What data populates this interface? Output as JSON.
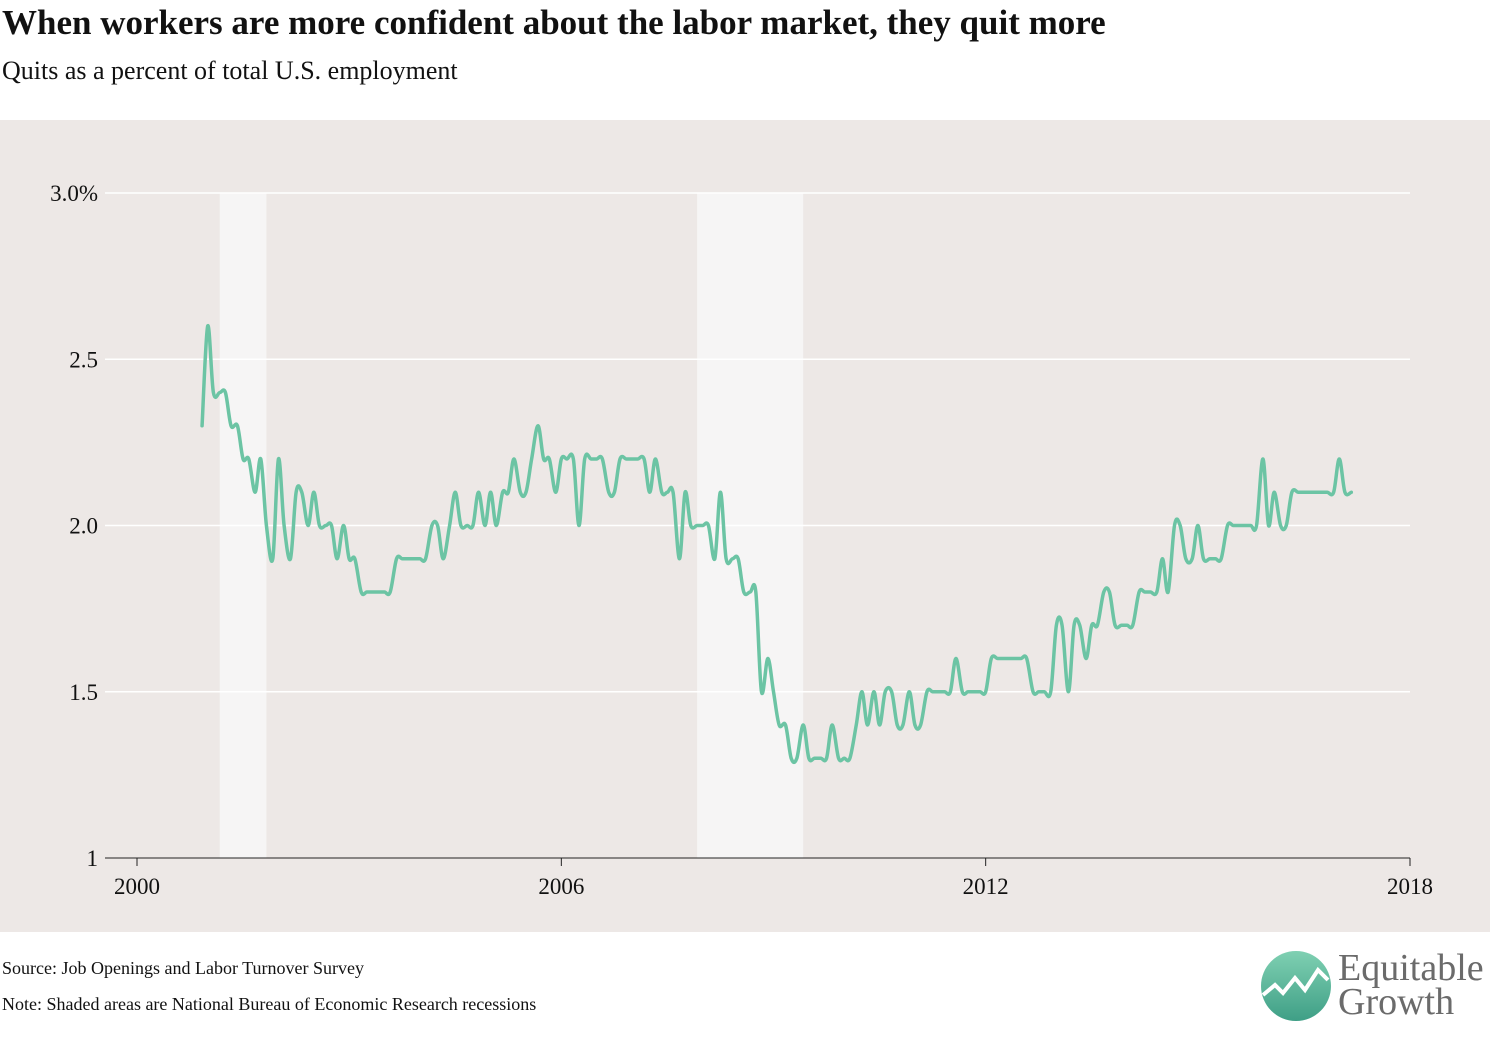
{
  "chart_data": {
    "type": "line",
    "title": "When workers are more confident about the labor market, they quit more",
    "subtitle": "Quits as a percent of total U.S. employment",
    "source": "Source: Job Openings and Labor Turnover Survey",
    "note": "Note: Shaded areas are National Bureau of Economic Research recessions",
    "logo": [
      "Equitable",
      "Growth"
    ],
    "xlim": [
      2000,
      2018
    ],
    "xticks": [
      2000,
      2006,
      2012,
      2018
    ],
    "ylim": [
      1,
      3
    ],
    "yticks": [
      1,
      1.5,
      {
        "value": 2,
        "label": "2.0"
      },
      {
        "value": 2.5,
        "label": "2.5"
      },
      {
        "value": 3,
        "label": "3.0%"
      }
    ],
    "grid": true,
    "recessions": [
      [
        2001.17,
        2001.83
      ],
      [
        2007.92,
        2009.42
      ]
    ],
    "recession_color": "#f6f5f5",
    "x": [
      2000.92,
      2001,
      2001.08,
      2001.17,
      2001.25,
      2001.33,
      2001.42,
      2001.5,
      2001.58,
      2001.67,
      2001.75,
      2001.83,
      2001.92,
      2002,
      2002.08,
      2002.17,
      2002.25,
      2002.33,
      2002.42,
      2002.5,
      2002.58,
      2002.67,
      2002.75,
      2002.83,
      2002.92,
      2003,
      2003.08,
      2003.17,
      2003.25,
      2003.33,
      2003.42,
      2003.5,
      2003.58,
      2003.67,
      2003.75,
      2003.83,
      2003.92,
      2004,
      2004.08,
      2004.17,
      2004.25,
      2004.33,
      2004.42,
      2004.5,
      2004.58,
      2004.67,
      2004.75,
      2004.83,
      2004.92,
      2005,
      2005.08,
      2005.17,
      2005.25,
      2005.33,
      2005.42,
      2005.5,
      2005.58,
      2005.67,
      2005.75,
      2005.83,
      2005.92,
      2006,
      2006.08,
      2006.17,
      2006.25,
      2006.33,
      2006.42,
      2006.5,
      2006.58,
      2006.67,
      2006.75,
      2006.83,
      2006.92,
      2007,
      2007.08,
      2007.17,
      2007.25,
      2007.33,
      2007.42,
      2007.5,
      2007.58,
      2007.67,
      2007.75,
      2007.83,
      2007.92,
      2008,
      2008.08,
      2008.17,
      2008.25,
      2008.33,
      2008.42,
      2008.5,
      2008.58,
      2008.67,
      2008.75,
      2008.83,
      2008.92,
      2009,
      2009.08,
      2009.17,
      2009.25,
      2009.33,
      2009.42,
      2009.5,
      2009.58,
      2009.67,
      2009.75,
      2009.83,
      2009.92,
      2010,
      2010.08,
      2010.17,
      2010.25,
      2010.33,
      2010.42,
      2010.5,
      2010.58,
      2010.67,
      2010.75,
      2010.83,
      2010.92,
      2011,
      2011.08,
      2011.17,
      2011.25,
      2011.33,
      2011.42,
      2011.5,
      2011.58,
      2011.67,
      2011.75,
      2011.83,
      2011.92,
      2012,
      2012.08,
      2012.17,
      2012.25,
      2012.33,
      2012.42,
      2012.5,
      2012.58,
      2012.67,
      2012.75,
      2012.83,
      2012.92,
      2013,
      2013.08,
      2013.17,
      2013.25,
      2013.33,
      2013.42,
      2013.5,
      2013.58,
      2013.67,
      2013.75,
      2013.83,
      2013.92,
      2014,
      2014.08,
      2014.17,
      2014.25,
      2014.33,
      2014.42,
      2014.5,
      2014.58,
      2014.67,
      2014.75,
      2014.83,
      2014.92,
      2015,
      2015.08,
      2015.17,
      2015.25,
      2015.33,
      2015.42,
      2015.5,
      2015.58,
      2015.67,
      2015.75,
      2015.83,
      2015.92,
      2016,
      2016.08,
      2016.17,
      2016.25,
      2016.33,
      2016.42,
      2016.5,
      2016.58,
      2016.67,
      2016.75,
      2016.83,
      2016.92,
      2017,
      2017.08,
      2017.17
    ],
    "series": [
      {
        "name": "Quits",
        "color": "#6cc4a4",
        "values": [
          2.3,
          2.6,
          2.4,
          2.4,
          2.4,
          2.3,
          2.3,
          2.2,
          2.2,
          2.1,
          2.2,
          2.0,
          1.9,
          2.2,
          2.0,
          1.9,
          2.1,
          2.1,
          2.0,
          2.1,
          2.0,
          2.0,
          2.0,
          1.9,
          2.0,
          1.9,
          1.9,
          1.8,
          1.8,
          1.8,
          1.8,
          1.8,
          1.8,
          1.9,
          1.9,
          1.9,
          1.9,
          1.9,
          1.9,
          2.0,
          2.0,
          1.9,
          2.0,
          2.1,
          2.0,
          2.0,
          2.0,
          2.1,
          2.0,
          2.1,
          2.0,
          2.1,
          2.1,
          2.2,
          2.1,
          2.1,
          2.2,
          2.3,
          2.2,
          2.2,
          2.1,
          2.2,
          2.2,
          2.2,
          2.0,
          2.2,
          2.2,
          2.2,
          2.2,
          2.1,
          2.1,
          2.2,
          2.2,
          2.2,
          2.2,
          2.2,
          2.1,
          2.2,
          2.1,
          2.1,
          2.1,
          1.9,
          2.1,
          2.0,
          2.0,
          2.0,
          2.0,
          1.9,
          2.1,
          1.9,
          1.9,
          1.9,
          1.8,
          1.8,
          1.8,
          1.5,
          1.6,
          1.5,
          1.4,
          1.4,
          1.3,
          1.3,
          1.4,
          1.3,
          1.3,
          1.3,
          1.3,
          1.4,
          1.3,
          1.3,
          1.3,
          1.4,
          1.5,
          1.4,
          1.5,
          1.4,
          1.5,
          1.5,
          1.4,
          1.4,
          1.5,
          1.4,
          1.4,
          1.5,
          1.5,
          1.5,
          1.5,
          1.5,
          1.6,
          1.5,
          1.5,
          1.5,
          1.5,
          1.5,
          1.6,
          1.6,
          1.6,
          1.6,
          1.6,
          1.6,
          1.6,
          1.5,
          1.5,
          1.5,
          1.5,
          1.7,
          1.7,
          1.5,
          1.7,
          1.7,
          1.6,
          1.7,
          1.7,
          1.8,
          1.8,
          1.7,
          1.7,
          1.7,
          1.7,
          1.8,
          1.8,
          1.8,
          1.8,
          1.9,
          1.8,
          2.0,
          2.0,
          1.9,
          1.9,
          2.0,
          1.9,
          1.9,
          1.9,
          1.9,
          2.0,
          2.0,
          2.0,
          2.0,
          2.0,
          2.0,
          2.2,
          2.0,
          2.1,
          2.0,
          2.0,
          2.1,
          2.1,
          2.1,
          2.1,
          2.1,
          2.1,
          2.1,
          2.1,
          2.2,
          2.1,
          2.1
        ]
      }
    ]
  }
}
